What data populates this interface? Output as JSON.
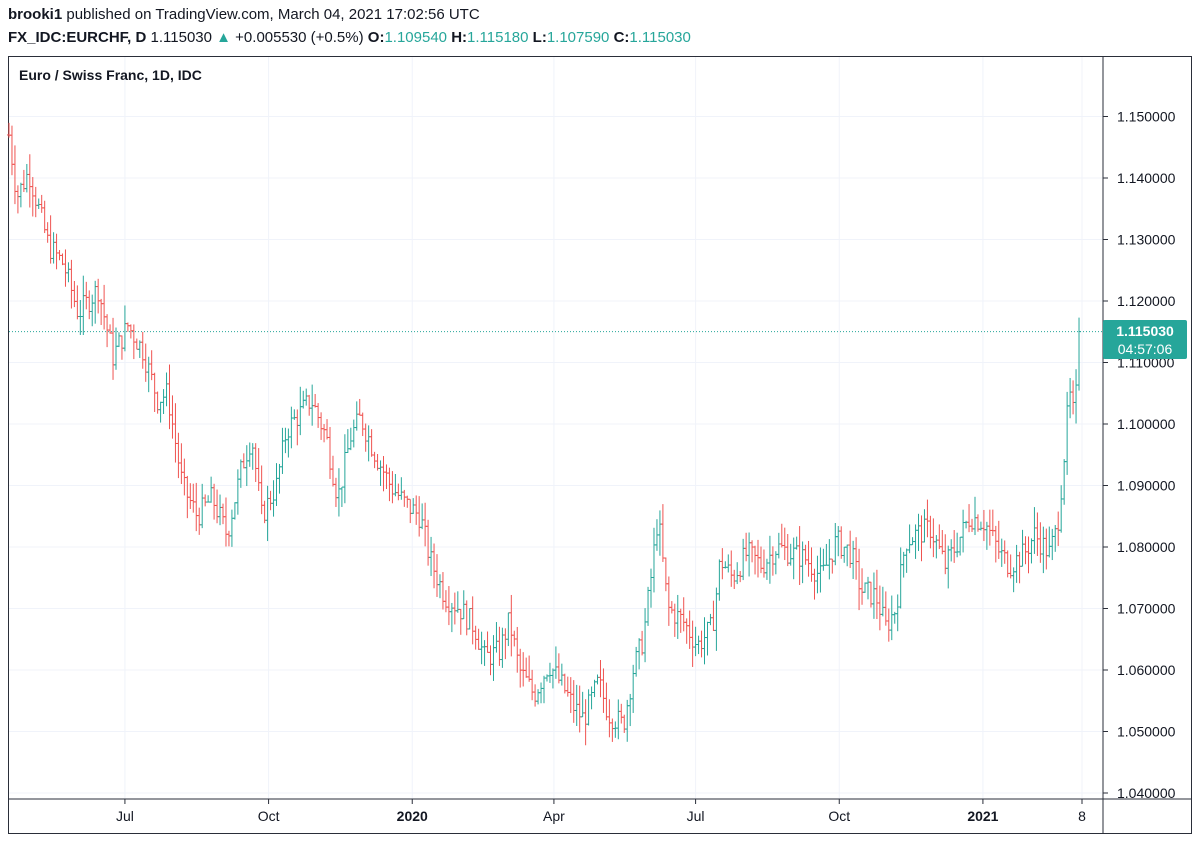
{
  "header": {
    "author": "brooki1",
    "published": "published on TradingView.com, March 04, 2021 17:02:56 UTC",
    "symbol": "FX_IDC:EURCHF, D",
    "last": "1.115030",
    "arrow": "▲",
    "change": "+0.005530 (+0.5%)",
    "open_label": "O:",
    "open": "1.109540",
    "high_label": "H:",
    "high": "1.115180",
    "low_label": "L:",
    "low": "1.107590",
    "close_label": "C:",
    "close": "1.115030"
  },
  "price_tag": {
    "value": "1.115030",
    "countdown": "04:57:06"
  },
  "colors": {
    "up": "#26a69a",
    "down": "#ef5350",
    "grid": "#f0f3fa",
    "text": "#131722"
  },
  "chart_data": {
    "type": "ohlc",
    "title": "Euro / Swiss Franc, 1D, IDC",
    "ylim": [
      1.04,
      1.158
    ],
    "last_price": 1.11503,
    "x_index_range": [
      0,
      1082
    ],
    "y_ticks": [
      "1.150000",
      "1.140000",
      "1.130000",
      "1.120000",
      "1.110000",
      "1.100000",
      "1.090000",
      "1.080000",
      "1.070000",
      "1.060000",
      "1.050000",
      "1.040000"
    ],
    "x_ticks": [
      {
        "label": "Jul",
        "index": 117,
        "bold": false
      },
      {
        "label": "Oct",
        "index": 262,
        "bold": false
      },
      {
        "label": "2020",
        "index": 407,
        "bold": true
      },
      {
        "label": "Apr",
        "index": 550,
        "bold": false
      },
      {
        "label": "Jul",
        "index": 693,
        "bold": false
      },
      {
        "label": "Oct",
        "index": 838,
        "bold": false
      },
      {
        "label": "2021",
        "index": 983,
        "bold": true
      },
      {
        "label": "8",
        "index": 1083,
        "bold": false
      }
    ],
    "bar_spacing_index": 3,
    "anchors": [
      [
        0,
        1.147
      ],
      [
        8,
        1.137
      ],
      [
        20,
        1.141
      ],
      [
        40,
        1.129
      ],
      [
        55,
        1.126
      ],
      [
        70,
        1.118
      ],
      [
        90,
        1.122
      ],
      [
        105,
        1.111
      ],
      [
        120,
        1.116
      ],
      [
        135,
        1.112
      ],
      [
        150,
        1.104
      ],
      [
        160,
        1.105
      ],
      [
        175,
        1.09
      ],
      [
        190,
        1.085
      ],
      [
        205,
        1.088
      ],
      [
        220,
        1.082
      ],
      [
        235,
        1.093
      ],
      [
        245,
        1.098
      ],
      [
        255,
        1.085
      ],
      [
        270,
        1.09
      ],
      [
        280,
        1.099
      ],
      [
        295,
        1.102
      ],
      [
        305,
        1.104
      ],
      [
        320,
        1.098
      ],
      [
        332,
        1.088
      ],
      [
        345,
        1.098
      ],
      [
        355,
        1.101
      ],
      [
        370,
        1.095
      ],
      [
        385,
        1.09
      ],
      [
        400,
        1.087
      ],
      [
        415,
        1.085
      ],
      [
        425,
        1.078
      ],
      [
        440,
        1.072
      ],
      [
        455,
        1.07
      ],
      [
        470,
        1.067
      ],
      [
        480,
        1.062
      ],
      [
        495,
        1.063
      ],
      [
        505,
        1.068
      ],
      [
        515,
        1.06
      ],
      [
        530,
        1.056
      ],
      [
        545,
        1.061
      ],
      [
        560,
        1.057
      ],
      [
        570,
        1.054
      ],
      [
        580,
        1.052
      ],
      [
        595,
        1.058
      ],
      [
        605,
        1.053
      ],
      [
        620,
        1.051
      ],
      [
        630,
        1.06
      ],
      [
        640,
        1.065
      ],
      [
        648,
        1.075
      ],
      [
        655,
        1.085
      ],
      [
        665,
        1.07
      ],
      [
        680,
        1.068
      ],
      [
        695,
        1.064
      ],
      [
        710,
        1.067
      ],
      [
        718,
        1.078
      ],
      [
        730,
        1.075
      ],
      [
        745,
        1.079
      ],
      [
        760,
        1.077
      ],
      [
        775,
        1.08
      ],
      [
        790,
        1.079
      ],
      [
        805,
        1.078
      ],
      [
        820,
        1.075
      ],
      [
        835,
        1.081
      ],
      [
        850,
        1.079
      ],
      [
        860,
        1.073
      ],
      [
        875,
        1.072
      ],
      [
        885,
        1.067
      ],
      [
        895,
        1.07
      ],
      [
        905,
        1.081
      ],
      [
        915,
        1.082
      ],
      [
        930,
        1.083
      ],
      [
        945,
        1.077
      ],
      [
        955,
        1.08
      ],
      [
        970,
        1.085
      ],
      [
        985,
        1.084
      ],
      [
        1000,
        1.079
      ],
      [
        1010,
        1.077
      ],
      [
        1025,
        1.079
      ],
      [
        1035,
        1.082
      ],
      [
        1050,
        1.079
      ],
      [
        1058,
        1.083
      ],
      [
        1064,
        1.093
      ],
      [
        1070,
        1.105
      ],
      [
        1075,
        1.101
      ],
      [
        1080,
        1.11
      ],
      [
        1082,
        1.11503
      ]
    ]
  }
}
